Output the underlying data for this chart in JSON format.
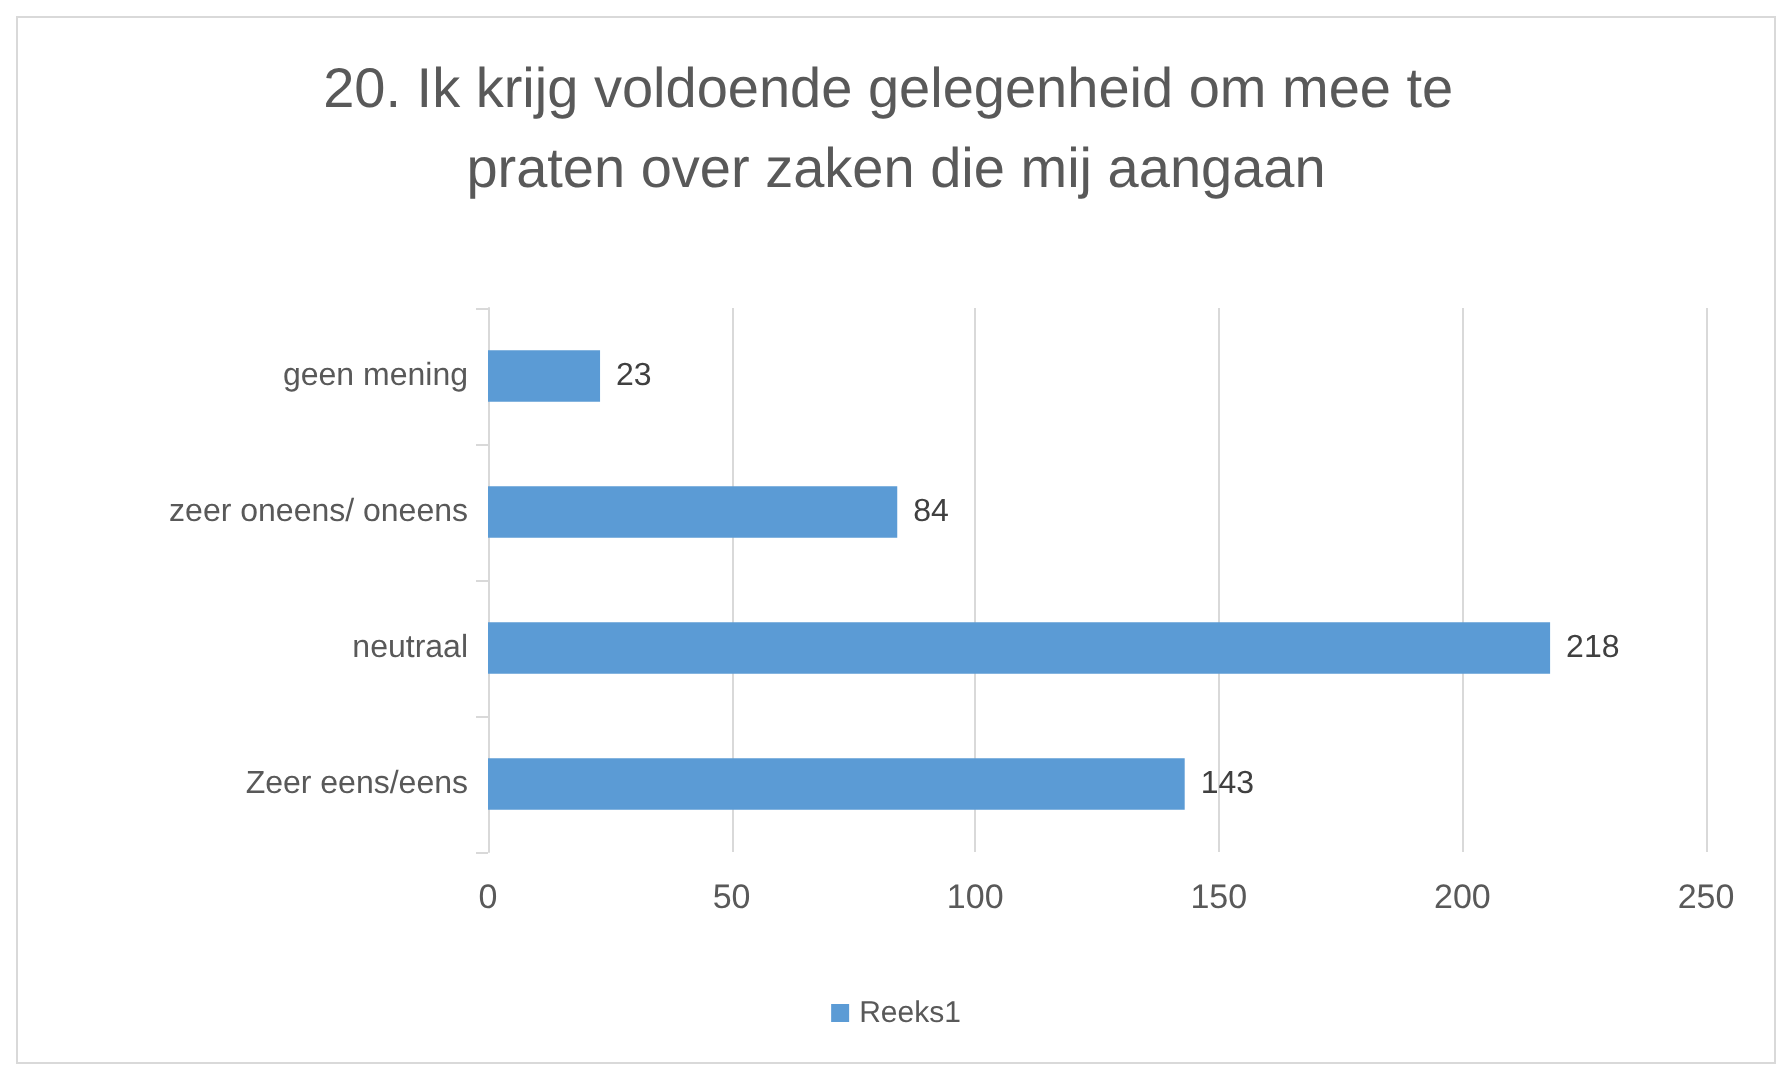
{
  "chart_data": {
    "type": "bar",
    "orientation": "horizontal",
    "title": "20. Ik krijg voldoende gelegenheid om mee te praten over zaken die mij aangaan",
    "categories": [
      "geen mening",
      "zeer oneens/ oneens",
      "neutraal",
      "Zeer eens/eens"
    ],
    "series": [
      {
        "name": "Reeks1",
        "color": "#5b9bd5",
        "values": [
          23,
          84,
          218,
          143
        ]
      }
    ],
    "xlim": [
      0,
      250
    ],
    "xticks": [
      0,
      50,
      100,
      150,
      200,
      250
    ],
    "grid": "x",
    "legend": "bottom",
    "data_labels": true
  }
}
